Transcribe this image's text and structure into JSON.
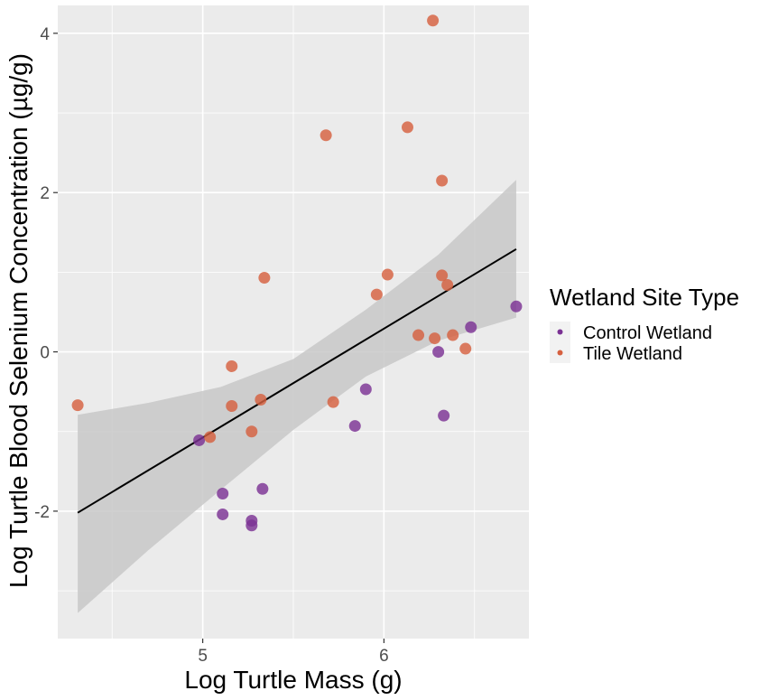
{
  "chart_data": {
    "type": "scatter",
    "xlabel": "Log Turtle Mass (g)",
    "ylabel": "Log Turtle Blood Selenium Concentration (µg/g)",
    "xlim": [
      4.2,
      6.8
    ],
    "ylim": [
      -3.6,
      4.35
    ],
    "x_ticks": [
      5,
      6
    ],
    "x_tick_labels": [
      "5",
      "6"
    ],
    "y_ticks": [
      -2,
      0,
      2,
      4
    ],
    "y_tick_labels": [
      "-2",
      "0",
      "2",
      "4"
    ],
    "grid": true,
    "panel_background": "#ebebeb",
    "grid_color": "#ffffff",
    "legend": {
      "title": "Wetland Site Type",
      "position": "right",
      "entries": [
        "Control Wetland",
        "Tile Wetland"
      ]
    },
    "series": [
      {
        "name": "Control Wetland",
        "color": "#7b3294",
        "points": [
          {
            "x": 4.98,
            "y": -1.11
          },
          {
            "x": 5.11,
            "y": -1.78
          },
          {
            "x": 5.11,
            "y": -2.04
          },
          {
            "x": 5.27,
            "y": -2.12
          },
          {
            "x": 5.27,
            "y": -2.18
          },
          {
            "x": 5.33,
            "y": -1.72
          },
          {
            "x": 5.84,
            "y": -0.93
          },
          {
            "x": 5.9,
            "y": -0.47
          },
          {
            "x": 6.3,
            "y": 0.0
          },
          {
            "x": 6.33,
            "y": -0.8
          },
          {
            "x": 6.48,
            "y": 0.31
          },
          {
            "x": 6.73,
            "y": 0.57
          }
        ]
      },
      {
        "name": "Tile Wetland",
        "color": "#d6603f",
        "points": [
          {
            "x": 4.31,
            "y": -0.67
          },
          {
            "x": 5.04,
            "y": -1.07
          },
          {
            "x": 5.16,
            "y": -0.18
          },
          {
            "x": 5.16,
            "y": -0.68
          },
          {
            "x": 5.27,
            "y": -1.0
          },
          {
            "x": 5.32,
            "y": -0.6
          },
          {
            "x": 5.34,
            "y": 0.93
          },
          {
            "x": 5.68,
            "y": 2.72
          },
          {
            "x": 5.72,
            "y": -0.63
          },
          {
            "x": 5.96,
            "y": 0.72
          },
          {
            "x": 6.02,
            "y": 0.97
          },
          {
            "x": 6.13,
            "y": 2.82
          },
          {
            "x": 6.19,
            "y": 0.21
          },
          {
            "x": 6.27,
            "y": 4.16
          },
          {
            "x": 6.28,
            "y": 0.17
          },
          {
            "x": 6.32,
            "y": 0.96
          },
          {
            "x": 6.32,
            "y": 2.15
          },
          {
            "x": 6.35,
            "y": 0.84
          },
          {
            "x": 6.38,
            "y": 0.21
          },
          {
            "x": 6.45,
            "y": 0.04
          }
        ]
      }
    ],
    "fit": {
      "type": "linear",
      "color": "#000000",
      "x": [
        4.31,
        6.73
      ],
      "y": [
        -2.02,
        1.29
      ],
      "ci_band": {
        "color": "#c8c8c8",
        "x": [
          4.31,
          4.7,
          5.1,
          5.5,
          5.9,
          6.3,
          6.73
        ],
        "lower": [
          -3.28,
          -2.49,
          -1.73,
          -0.98,
          -0.31,
          0.14,
          0.43
        ],
        "upper": [
          -0.79,
          -0.64,
          -0.44,
          -0.09,
          0.53,
          1.22,
          2.16
        ]
      }
    }
  }
}
